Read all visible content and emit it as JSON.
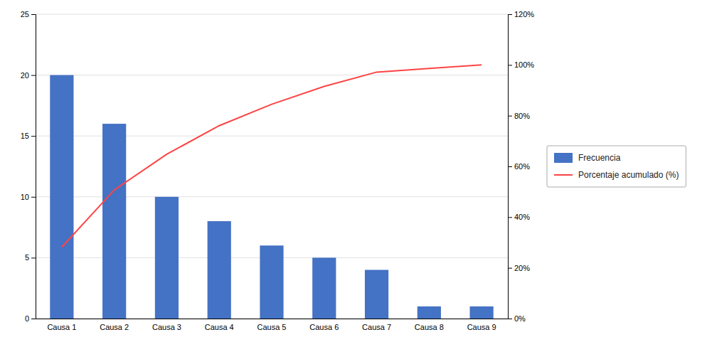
{
  "chart_data": {
    "type": "bar",
    "categories": [
      "Causa 1",
      "Causa 2",
      "Causa 3",
      "Causa 4",
      "Causa 5",
      "Causa 6",
      "Causa 7",
      "Causa 8",
      "Causa 9"
    ],
    "series": [
      {
        "name": "Frecuencia",
        "type": "bar",
        "color": "#4472C4",
        "values": [
          20,
          16,
          10,
          8,
          6,
          5,
          4,
          1,
          1
        ]
      },
      {
        "name": "Porcentaje acumulado (%)",
        "type": "line",
        "color": "#FF4444",
        "axis": "y2",
        "values": [
          28.17,
          50.7,
          64.79,
          76.06,
          84.51,
          91.55,
          97.18,
          98.59,
          100.0
        ]
      }
    ],
    "ylim": [
      0,
      25
    ],
    "yticks": [
      0,
      5,
      10,
      15,
      20,
      25
    ],
    "y2lim": [
      0,
      120
    ],
    "y2ticks": [
      {
        "value": 0,
        "label": "0%"
      },
      {
        "value": 20,
        "label": "20%"
      },
      {
        "value": 40,
        "label": "40%"
      },
      {
        "value": 60,
        "label": "60%"
      },
      {
        "value": 80,
        "label": "80%"
      },
      {
        "value": 100,
        "label": "100%"
      },
      {
        "value": 120,
        "label": "120%"
      }
    ],
    "grid": true,
    "legend": "right"
  }
}
